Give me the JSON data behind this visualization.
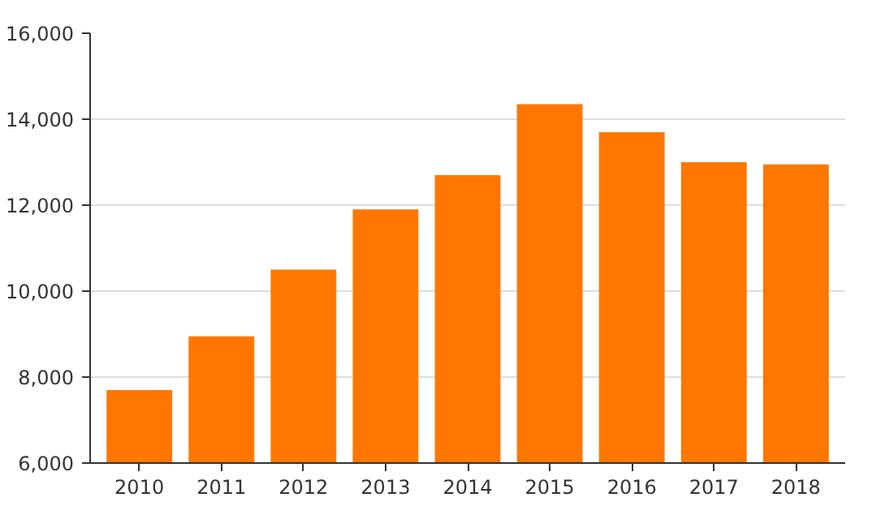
{
  "chart_data": {
    "type": "bar",
    "categories": [
      "2010",
      "2011",
      "2012",
      "2013",
      "2014",
      "2015",
      "2016",
      "2017",
      "2018"
    ],
    "values": [
      7700,
      8950,
      10500,
      11900,
      12700,
      14350,
      13700,
      13000,
      12950
    ],
    "color": "#ff7700",
    "ylim": [
      6000,
      16000
    ],
    "yticks": [
      {
        "value": 6000,
        "label": "6,000"
      },
      {
        "value": 8000,
        "label": "8,000"
      },
      {
        "value": 10000,
        "label": "10,000"
      },
      {
        "value": 12000,
        "label": "12,000"
      },
      {
        "value": 14000,
        "label": "14,000"
      },
      {
        "value": 16000,
        "label": "16,000"
      }
    ],
    "grid": "y"
  }
}
